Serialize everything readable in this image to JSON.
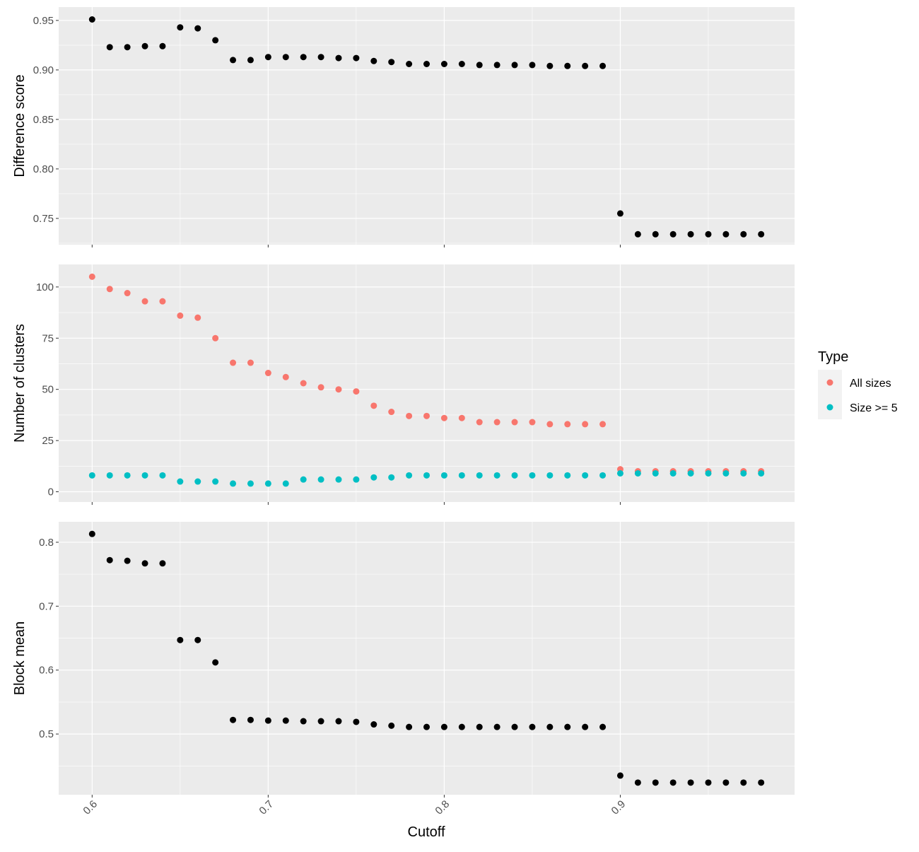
{
  "chart_data": {
    "type": "scatter",
    "x": [
      0.6,
      0.61,
      0.62,
      0.63,
      0.64,
      0.65,
      0.66,
      0.67,
      0.68,
      0.69,
      0.7,
      0.71,
      0.72,
      0.73,
      0.74,
      0.75,
      0.76,
      0.77,
      0.78,
      0.79,
      0.8,
      0.81,
      0.82,
      0.83,
      0.84,
      0.85,
      0.86,
      0.87,
      0.88,
      0.89,
      0.9,
      0.91,
      0.92,
      0.93,
      0.94,
      0.95,
      0.96,
      0.97,
      0.98
    ],
    "xlabel": "Cutoff",
    "xlim": [
      0.581,
      0.999
    ],
    "xticks": [
      "0.6",
      "0.7",
      "0.8",
      "0.9"
    ],
    "grid": true,
    "background": "#ebebeb",
    "legend": {
      "title": "Type",
      "position": "right",
      "entries": [
        {
          "label": "All sizes",
          "color": "#F8766D"
        },
        {
          "label": "Size >= 5",
          "color": "#00BFC4"
        }
      ]
    },
    "panels": [
      {
        "ylabel": "Difference score",
        "ylim": [
          0.7235,
          0.9635
        ],
        "yticks": [
          "0.75",
          "0.80",
          "0.85",
          "0.90",
          "0.95"
        ],
        "series": [
          {
            "color": "#000000",
            "values": [
              0.951,
              0.923,
              0.923,
              0.924,
              0.924,
              0.943,
              0.942,
              0.93,
              0.91,
              0.91,
              0.913,
              0.913,
              0.913,
              0.913,
              0.912,
              0.912,
              0.909,
              0.908,
              0.906,
              0.906,
              0.906,
              0.906,
              0.905,
              0.905,
              0.905,
              0.905,
              0.904,
              0.904,
              0.904,
              0.904,
              0.755,
              0.734,
              0.734,
              0.734,
              0.734,
              0.734,
              0.734,
              0.734,
              0.734
            ]
          }
        ]
      },
      {
        "ylabel": "Number of clusters",
        "ylim": [
          -5,
          111
        ],
        "yticks": [
          "0",
          "25",
          "50",
          "75",
          "100"
        ],
        "series": [
          {
            "name": "All sizes",
            "color": "#F8766D",
            "values": [
              105,
              99,
              97,
              93,
              93,
              86,
              85,
              75,
              63,
              63,
              58,
              56,
              53,
              51,
              50,
              49,
              42,
              39,
              37,
              37,
              36,
              36,
              34,
              34,
              34,
              34,
              33,
              33,
              33,
              33,
              11,
              10,
              10,
              10,
              10,
              10,
              10,
              10,
              10
            ]
          },
          {
            "name": "Size >= 5",
            "color": "#00BFC4",
            "values": [
              8,
              8,
              8,
              8,
              8,
              5,
              5,
              5,
              4,
              4,
              4,
              4,
              6,
              6,
              6,
              6,
              7,
              7,
              8,
              8,
              8,
              8,
              8,
              8,
              8,
              8,
              8,
              8,
              8,
              8,
              9,
              9,
              9,
              9,
              9,
              9,
              9,
              9,
              9
            ]
          }
        ]
      },
      {
        "ylabel": "Block mean",
        "ylim": [
          0.405,
          0.832
        ],
        "yticks": [
          "0.5",
          "0.6",
          "0.7",
          "0.8"
        ],
        "series": [
          {
            "color": "#000000",
            "values": [
              0.813,
              0.772,
              0.771,
              0.767,
              0.767,
              0.647,
              0.647,
              0.612,
              0.522,
              0.522,
              0.521,
              0.521,
              0.52,
              0.52,
              0.52,
              0.519,
              0.515,
              0.513,
              0.511,
              0.511,
              0.511,
              0.511,
              0.511,
              0.511,
              0.511,
              0.511,
              0.511,
              0.511,
              0.511,
              0.511,
              0.435,
              0.424,
              0.424,
              0.424,
              0.424,
              0.424,
              0.424,
              0.424,
              0.424
            ]
          }
        ]
      }
    ]
  }
}
